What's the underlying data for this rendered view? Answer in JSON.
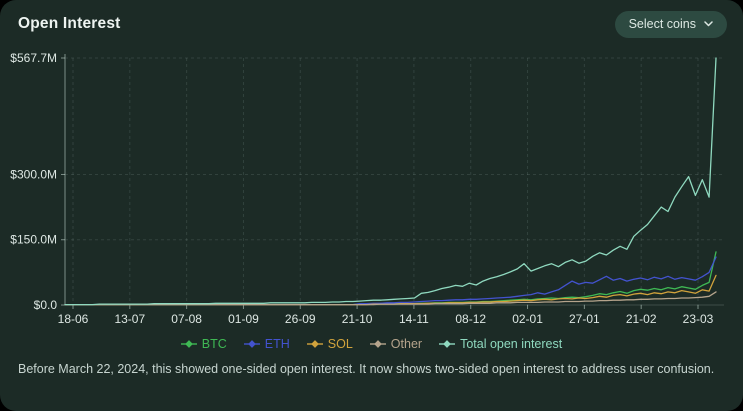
{
  "header": {
    "title": "Open Interest",
    "select_coins_label": "Select coins"
  },
  "footer": {
    "note": "Before March 22, 2024, this showed one-sided open interest. It now shows two-sided open interest to address user confusion."
  },
  "colors": {
    "card_background": "#1c2b26",
    "button_background": "#2d4a41",
    "text_primary": "#eef4f1",
    "text_muted": "#c7d5d0",
    "btc": "#3fb954",
    "eth": "#4353cf",
    "sol": "#d1a33c",
    "other": "#b5a48c",
    "total": "#8fd9bf"
  },
  "chart_data": {
    "type": "line",
    "title": "Open Interest",
    "xlabel": "",
    "ylabel": "",
    "unit": "$M",
    "ylim": [
      0,
      567.7
    ],
    "grid": true,
    "legend_position": "bottom",
    "y_ticks": [
      {
        "label": "$567.7M",
        "value": 567.7
      },
      {
        "label": "$300.0M",
        "value": 300
      },
      {
        "label": "$150.0M",
        "value": 150
      },
      {
        "label": "$0.0",
        "value": 0
      }
    ],
    "x_ticks": [
      "18-06",
      "13-07",
      "07-08",
      "01-09",
      "26-09",
      "21-10",
      "14-11",
      "08-12",
      "02-01",
      "27-01",
      "21-02",
      "23-03"
    ],
    "series": [
      {
        "name": "BTC",
        "color": "#3fb954",
        "values": [
          1,
          1,
          1,
          1,
          1,
          1,
          1,
          1,
          1,
          1,
          1,
          1,
          1,
          1,
          1,
          1,
          1,
          1,
          1,
          1,
          1,
          1,
          1,
          1,
          1,
          1,
          1,
          1,
          1,
          1,
          1,
          1,
          1,
          1,
          1,
          1,
          1,
          1,
          1,
          1,
          1,
          1,
          1,
          2,
          2,
          2,
          2,
          3,
          3,
          3,
          3,
          3,
          4,
          4,
          5,
          5,
          6,
          6,
          6,
          7,
          7,
          8,
          8,
          9,
          10,
          11,
          12,
          13,
          12,
          14,
          15,
          16,
          15,
          17,
          18,
          17,
          19,
          22,
          26,
          24,
          28,
          31,
          27,
          33,
          36,
          34,
          38,
          35,
          40,
          37,
          42,
          39,
          36,
          45,
          52,
          122
        ]
      },
      {
        "name": "ETH",
        "color": "#4353cf",
        "values": [
          1,
          1,
          1,
          1,
          1,
          1,
          1,
          1,
          1,
          1,
          1,
          1,
          1,
          1,
          1,
          1,
          1,
          1,
          1,
          1,
          1,
          1,
          1,
          1,
          1,
          1,
          1,
          1,
          1,
          1,
          1,
          1,
          1,
          1,
          1,
          1,
          1,
          1,
          1,
          1,
          1,
          1,
          1,
          3,
          3,
          4,
          4,
          5,
          5,
          6,
          6,
          7,
          8,
          9,
          10,
          10,
          11,
          12,
          12,
          13,
          13,
          14,
          15,
          16,
          17,
          18,
          20,
          22,
          24,
          28,
          25,
          30,
          35,
          45,
          55,
          48,
          52,
          50,
          58,
          66,
          57,
          61,
          55,
          59,
          62,
          58,
          64,
          60,
          66,
          59,
          63,
          60,
          57,
          65,
          75,
          110
        ]
      },
      {
        "name": "SOL",
        "color": "#d1a33c",
        "values": [
          1,
          1,
          1,
          1,
          1,
          1,
          1,
          1,
          1,
          1,
          1,
          1,
          1,
          1,
          1,
          1,
          1,
          1,
          1,
          1,
          1,
          1,
          1,
          1,
          1,
          1,
          1,
          1,
          1,
          1,
          1,
          1,
          1,
          1,
          1,
          1,
          1,
          1,
          1,
          1,
          1,
          1,
          1,
          1,
          1,
          2,
          2,
          2,
          2,
          3,
          3,
          3,
          3,
          4,
          4,
          4,
          5,
          5,
          5,
          6,
          6,
          7,
          7,
          8,
          8,
          9,
          10,
          11,
          10,
          12,
          13,
          12,
          14,
          15,
          14,
          16,
          15,
          17,
          20,
          18,
          22,
          24,
          21,
          25,
          27,
          24,
          28,
          26,
          30,
          28,
          33,
          30,
          27,
          35,
          32,
          68
        ]
      },
      {
        "name": "Other",
        "color": "#b5a48c",
        "values": [
          1,
          1,
          1,
          1,
          1,
          1,
          1,
          1,
          1,
          1,
          1,
          1,
          1,
          1,
          1,
          1,
          1,
          1,
          1,
          1,
          1,
          1,
          1,
          1,
          1,
          1,
          1,
          1,
          1,
          1,
          1,
          1,
          1,
          1,
          1,
          1,
          1,
          1,
          1,
          1,
          1,
          1,
          1,
          1,
          1,
          1,
          2,
          2,
          2,
          2,
          2,
          2,
          2,
          2,
          3,
          3,
          3,
          3,
          3,
          4,
          4,
          4,
          4,
          5,
          5,
          5,
          6,
          6,
          6,
          6,
          7,
          7,
          7,
          8,
          8,
          8,
          9,
          9,
          10,
          10,
          11,
          11,
          12,
          12,
          13,
          13,
          14,
          14,
          15,
          15,
          16,
          16,
          17,
          18,
          20,
          30
        ]
      },
      {
        "name": "Total open interest",
        "color": "#8fd9bf",
        "values": [
          1,
          1,
          1,
          1,
          1,
          2,
          2,
          2,
          2,
          2,
          2,
          2,
          2,
          3,
          3,
          3,
          3,
          3,
          3,
          3,
          3,
          3,
          4,
          4,
          4,
          4,
          4,
          4,
          4,
          4,
          5,
          5,
          5,
          5,
          5,
          5,
          6,
          6,
          6,
          7,
          7,
          8,
          8,
          9,
          10,
          11,
          11,
          12,
          13,
          14,
          15,
          16,
          27,
          29,
          33,
          38,
          41,
          45,
          43,
          50,
          46,
          55,
          61,
          65,
          70,
          76,
          83,
          95,
          78,
          84,
          90,
          95,
          88,
          98,
          104,
          96,
          101,
          112,
          120,
          115,
          126,
          135,
          128,
          158,
          172,
          185,
          205,
          225,
          215,
          248,
          272,
          295,
          252,
          288,
          248,
          567.7
        ]
      }
    ]
  }
}
